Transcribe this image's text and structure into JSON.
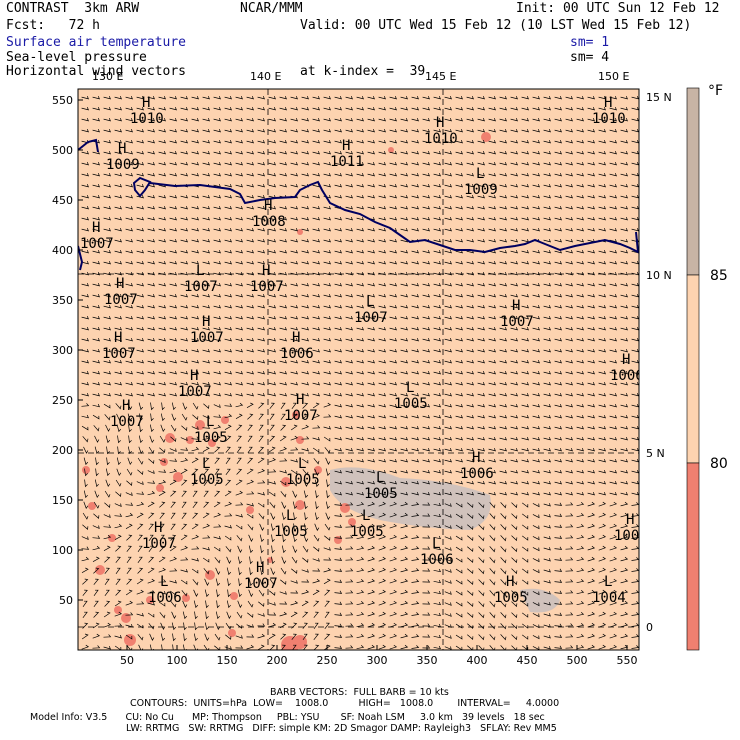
{
  "header": {
    "model_line": "CONTRAST  3km ARW",
    "center": "NCAR/MMM",
    "init": "Init: 00 UTC Sun 12 Feb 12",
    "fcst": "Fcst:   72 h",
    "valid": "Valid: 00 UTC Wed 15 Feb 12 (10 LST Wed 15 Feb 12)",
    "field1": "Surface air temperature",
    "field1_sm": "sm= 1",
    "field2": "Sea-level pressure",
    "field2_sm": "sm= 4",
    "field3": "Horizontal wind vectors",
    "k_index": "at k-index =  39"
  },
  "map": {
    "top_lon_labels": [
      "130 E",
      "140 E",
      "145 E",
      "150 E"
    ],
    "right_lat_labels": [
      "15 N",
      "10 N",
      "5 N",
      "0"
    ],
    "x_ticks": [
      "50",
      "100",
      "150",
      "200",
      "250",
      "300",
      "350",
      "400",
      "450",
      "500",
      "550"
    ],
    "y_ticks": [
      "550",
      "500",
      "450",
      "400",
      "350",
      "300",
      "250",
      "200",
      "150",
      "100",
      "50"
    ],
    "pressure_centers": [
      {
        "type": "H",
        "value": "1010"
      },
      {
        "type": "H",
        "value": "1009"
      },
      {
        "type": "H",
        "value": "1010"
      },
      {
        "type": "H",
        "value": "1010"
      },
      {
        "type": "H",
        "value": "1011"
      },
      {
        "type": "L",
        "value": "1009"
      },
      {
        "type": "H",
        "value": "1008"
      },
      {
        "type": "H",
        "value": "1007"
      },
      {
        "type": "H",
        "value": "1007"
      },
      {
        "type": "L",
        "value": "1007"
      },
      {
        "type": "L",
        "value": "1007"
      },
      {
        "type": "H",
        "value": "1007"
      },
      {
        "type": "H",
        "value": "1007"
      },
      {
        "type": "H",
        "value": "1007"
      },
      {
        "type": "H",
        "value": "1006"
      },
      {
        "type": "H",
        "value": "1007"
      },
      {
        "type": "H",
        "value": "1007"
      },
      {
        "type": "H",
        "value": "1007"
      },
      {
        "type": "L",
        "value": "1005"
      },
      {
        "type": "L",
        "value": "1005"
      },
      {
        "type": "L",
        "value": "1005"
      },
      {
        "type": "L",
        "value": "1005"
      },
      {
        "type": "H",
        "value": "1006"
      },
      {
        "type": "L",
        "value": "1005"
      },
      {
        "type": "L",
        "value": "1005"
      },
      {
        "type": "H",
        "value": "1007"
      },
      {
        "type": "L",
        "value": "1005"
      },
      {
        "type": "L",
        "value": "1006"
      },
      {
        "type": "H",
        "value": "1007"
      },
      {
        "type": "L",
        "value": "1006"
      },
      {
        "type": "H",
        "value": "1005"
      },
      {
        "type": "L",
        "value": "1004"
      },
      {
        "type": "H",
        "value": "1006"
      },
      {
        "type": "H",
        "value": "1007"
      },
      {
        "type": "H",
        "value": "1007"
      }
    ]
  },
  "colorbar": {
    "unit": "°F",
    "labels": [
      "85",
      "80"
    ],
    "colors": {
      "cold": "#f08070",
      "mid": "#fdd3b0",
      "warm": "#c8b4a5"
    }
  },
  "colors": {
    "field_fill": "#fdd3b0",
    "warm_patch": "#f08070",
    "coast": "#000060",
    "gray_patch": "#c8bebe",
    "title_blue": "#1a1aa6"
  },
  "footer": {
    "line1": "BARB VECTORS:  FULL BARB = 10 kts",
    "line2": "CONTOURS:  UNITS=hPa  LOW=    1008.0          HIGH=   1008.0        INTERVAL=     4.0000",
    "line3": "Model Info: V3.5      CU: No Cu      MP: Thompson     PBL: YSU       SF: Noah LSM     3.0 km   39 levels   18 sec",
    "line4": "LW: RRTMG   SW: RRTMG   DIFF: simple KM: 2D Smagor DAMP: Rayleigh3   SFLAY: Rev MM5"
  }
}
